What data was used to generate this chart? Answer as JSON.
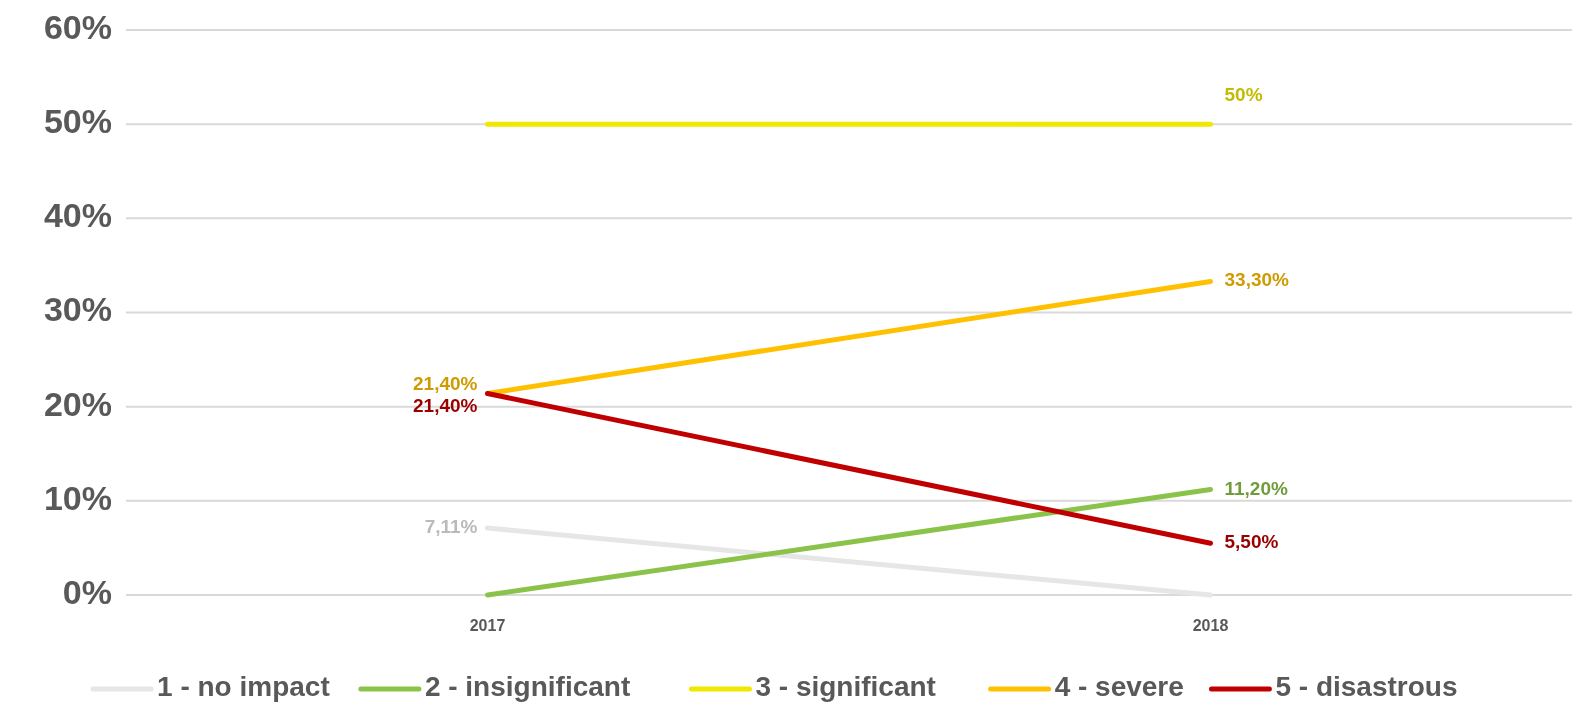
{
  "chart_data": {
    "type": "line",
    "categories": [
      "2017",
      "2018"
    ],
    "ylim": [
      0,
      60
    ],
    "yticks": [
      {
        "value": 0,
        "label": "0%"
      },
      {
        "value": 10,
        "label": "10%"
      },
      {
        "value": 20,
        "label": "20%"
      },
      {
        "value": 30,
        "label": "30%"
      },
      {
        "value": 40,
        "label": "40%"
      },
      {
        "value": 50,
        "label": "50%"
      },
      {
        "value": 60,
        "label": "60%"
      }
    ],
    "grid": "y",
    "legend": "bottom",
    "marker": "none",
    "line_style": "solid",
    "series": [
      {
        "name": "1 - no impact",
        "color": "#e6e6e6",
        "values": [
          7.11,
          0
        ],
        "value_labels": [
          "7,11%",
          null
        ]
      },
      {
        "name": "2 - insignificant",
        "color": "#8bc34a",
        "values": [
          0,
          11.2
        ],
        "value_labels": [
          null,
          "11,20%"
        ]
      },
      {
        "name": "3 - significant",
        "color": "#f0e800",
        "values": [
          50,
          50
        ],
        "value_labels": [
          null,
          "50%"
        ]
      },
      {
        "name": "4 - severe",
        "color": "#ffc000",
        "values": [
          21.4,
          33.3
        ],
        "value_labels": [
          "21,40%",
          "33,30%"
        ]
      },
      {
        "name": "5 - disastrous",
        "color": "#c00000",
        "values": [
          21.4,
          5.5
        ],
        "value_labels": [
          "21,40%",
          "5,50%"
        ]
      }
    ]
  }
}
